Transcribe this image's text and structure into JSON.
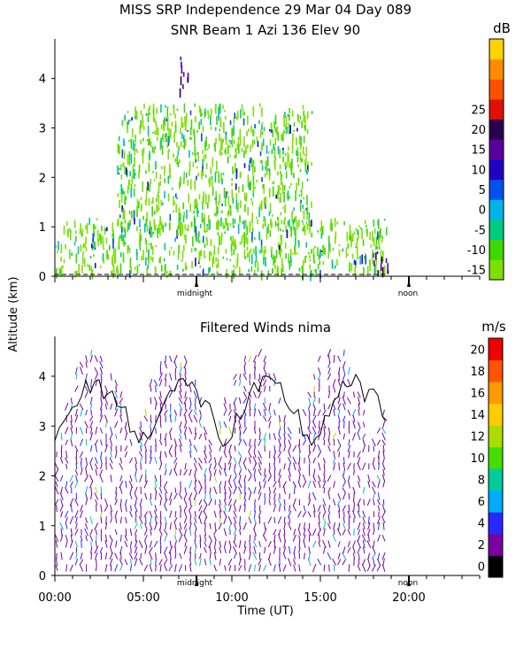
{
  "header": {
    "title_line1": "MISS SRP Independence  29 Mar 04 Day 089",
    "title_line2": "SNR Beam 1 Azi 136 Elev 90"
  },
  "shared_axis": {
    "ylabel": "Altitude (km)",
    "xlabel": "Time (UT)",
    "midnight_label": "midnight",
    "noon_label": "noon"
  },
  "chart_data": [
    {
      "type": "heatmap",
      "title": "SNR Beam 1 Azi 136 Elev 90",
      "ylabel": "Altitude (km)",
      "ylim": [
        0,
        4.8
      ],
      "yticks": [
        "0",
        "1",
        "2",
        "3",
        "4"
      ],
      "xlim": [
        0,
        24
      ],
      "x_special": [
        {
          "label": "midnight",
          "x": 8.0
        },
        {
          "label": "noon",
          "x": 20.0
        }
      ],
      "data_extent_x": [
        0,
        18.8
      ],
      "colorbar": {
        "unit": "dB",
        "ticks": [
          "-15",
          "-10",
          "-5",
          "0",
          "5",
          "10",
          "15",
          "20",
          "25"
        ],
        "colors": [
          "#7ee000",
          "#3ed800",
          "#00cc80",
          "#00b4e8",
          "#0050f0",
          "#2000c8",
          "#5a00a0",
          "#2a0050",
          "#e01000",
          "#ff5000",
          "#ff8c00",
          "#ffd200"
        ]
      },
      "features": [
        {
          "name": "low layer",
          "x": [
            0,
            18.8
          ],
          "alt": [
            0.1,
            1.2
          ],
          "level": "-10 to -5"
        },
        {
          "name": "mid layer",
          "x": [
            3.5,
            14.5
          ],
          "alt": [
            1.0,
            3.5
          ],
          "level": "-10 to 5"
        },
        {
          "name": "upper isolated echo",
          "x": [
            7.0,
            7.5
          ],
          "alt": [
            3.8,
            4.5
          ],
          "level": "5 to 15"
        },
        {
          "name": "late strong echo",
          "x": [
            18.0,
            18.8
          ],
          "alt": [
            0.1,
            0.6
          ],
          "level": "5 to 15"
        }
      ]
    },
    {
      "type": "wind-barbs",
      "title": "Filtered Winds nima",
      "ylabel": "Altitude (km)",
      "xlabel": "Time (UT)",
      "ylim": [
        0,
        4.8
      ],
      "yticks": [
        "0",
        "1",
        "2",
        "3",
        "4"
      ],
      "xlim": [
        0,
        24
      ],
      "xticks": [
        "00:00",
        "05:00",
        "10:00",
        "15:00",
        "20:00"
      ],
      "x_special": [
        {
          "label": "midnight",
          "x": 8.0
        },
        {
          "label": "noon",
          "x": 20.0
        }
      ],
      "data_extent_x": [
        0,
        18.8
      ],
      "colorbar": {
        "unit": "m/s",
        "ticks": [
          "0",
          "2",
          "4",
          "6",
          "8",
          "10",
          "12",
          "14",
          "16",
          "18",
          "20"
        ],
        "colors": [
          "#000000",
          "#7a00a0",
          "#2828ff",
          "#00aaff",
          "#00cc99",
          "#44dd00",
          "#aadd00",
          "#ffcc00",
          "#ff9900",
          "#ff5500",
          "#ee0000"
        ]
      },
      "dominant_speed_ms": [
        2,
        4
      ],
      "max_speed_ms": 12
    }
  ]
}
